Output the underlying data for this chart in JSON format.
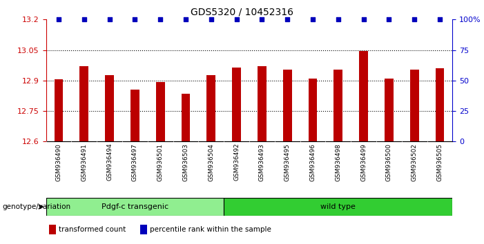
{
  "title": "GDS5320 / 10452316",
  "samples": [
    "GSM936490",
    "GSM936491",
    "GSM936494",
    "GSM936497",
    "GSM936501",
    "GSM936503",
    "GSM936504",
    "GSM936492",
    "GSM936493",
    "GSM936495",
    "GSM936496",
    "GSM936498",
    "GSM936499",
    "GSM936500",
    "GSM936502",
    "GSM936505"
  ],
  "bar_values": [
    12.905,
    12.97,
    12.925,
    12.857,
    12.892,
    12.835,
    12.925,
    12.965,
    12.97,
    12.955,
    12.91,
    12.955,
    13.045,
    12.91,
    12.955,
    12.962
  ],
  "percentile_values": [
    100,
    100,
    100,
    100,
    100,
    100,
    100,
    100,
    100,
    100,
    100,
    100,
    100,
    100,
    100,
    100
  ],
  "group1_label": "Pdgf-c transgenic",
  "group2_label": "wild type",
  "group1_count": 7,
  "group2_count": 9,
  "group1_color": "#90EE90",
  "group2_color": "#32CD32",
  "genotype_label": "genotype/variation",
  "bar_color": "#BB0000",
  "percentile_color": "#0000BB",
  "ylim_left": [
    12.6,
    13.2
  ],
  "ylim_right": [
    0,
    100
  ],
  "yticks_left": [
    12.6,
    12.75,
    12.9,
    13.05,
    13.2
  ],
  "yticks_right": [
    0,
    25,
    50,
    75,
    100
  ],
  "ytick_labels_left": [
    "12.6",
    "12.75",
    "12.9",
    "13.05",
    "13.2"
  ],
  "ytick_labels_right": [
    "0",
    "25",
    "50",
    "75",
    "100%"
  ],
  "grid_lines": [
    12.75,
    12.9,
    13.05
  ],
  "legend_items": [
    {
      "color": "#BB0000",
      "label": "transformed count"
    },
    {
      "color": "#0000BB",
      "label": "percentile rank within the sample"
    }
  ],
  "background_color": "#ffffff",
  "plot_bg_color": "#ffffff",
  "xtick_bg_color": "#d8d8d8"
}
